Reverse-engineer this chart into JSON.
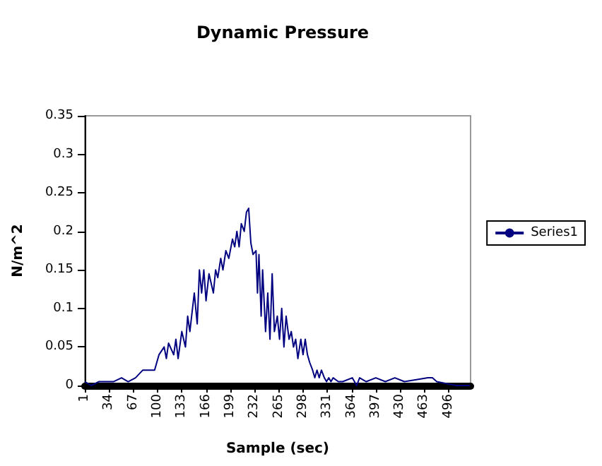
{
  "chart_data": {
    "type": "line",
    "title": "Dynamic Pressure",
    "xlabel": "Sample (sec)",
    "ylabel": "N/m^2",
    "x": [
      1,
      10,
      20,
      30,
      40,
      51,
      60,
      70,
      80,
      96,
      99,
      102,
      109,
      112,
      115,
      122,
      125,
      128,
      133,
      138,
      141,
      144,
      150,
      154,
      157,
      160,
      163,
      166,
      170,
      176,
      179,
      182,
      186,
      189,
      193,
      197,
      202,
      205,
      208,
      211,
      214,
      218,
      221,
      224,
      227,
      230,
      234,
      236,
      238,
      241,
      243,
      247,
      250,
      253,
      256,
      259,
      263,
      266,
      269,
      272,
      275,
      279,
      282,
      285,
      288,
      291,
      295,
      298,
      301,
      304,
      307,
      311,
      314,
      317,
      320,
      323,
      327,
      330,
      333,
      336,
      339,
      346,
      352,
      365,
      371,
      375,
      384,
      397,
      410,
      423,
      436,
      468,
      474,
      480,
      506,
      525
    ],
    "series": [
      {
        "name": "Series1",
        "color": "#000080",
        "values": [
          0.005,
          0,
          0.005,
          0.005,
          0.005,
          0.01,
          0.005,
          0.01,
          0.02,
          0.02,
          0.03,
          0.04,
          0.05,
          0.035,
          0.055,
          0.04,
          0.06,
          0.035,
          0.07,
          0.05,
          0.09,
          0.07,
          0.12,
          0.08,
          0.15,
          0.12,
          0.15,
          0.11,
          0.145,
          0.12,
          0.15,
          0.14,
          0.165,
          0.15,
          0.175,
          0.165,
          0.19,
          0.18,
          0.2,
          0.18,
          0.21,
          0.2,
          0.225,
          0.23,
          0.185,
          0.17,
          0.175,
          0.12,
          0.17,
          0.09,
          0.15,
          0.07,
          0.12,
          0.06,
          0.145,
          0.07,
          0.09,
          0.06,
          0.1,
          0.05,
          0.09,
          0.06,
          0.07,
          0.05,
          0.06,
          0.035,
          0.06,
          0.04,
          0.06,
          0.04,
          0.03,
          0.02,
          0.01,
          0.02,
          0.01,
          0.02,
          0.01,
          0.005,
          0.01,
          0.005,
          0.01,
          0.005,
          0.005,
          0.01,
          0,
          0.01,
          0.005,
          0.01,
          0.005,
          0.01,
          0.005,
          0.01,
          0.01,
          0.005,
          0,
          0
        ]
      }
    ],
    "xlim": [
      1,
      526
    ],
    "xticks": [
      1,
      34,
      67,
      100,
      133,
      166,
      199,
      232,
      265,
      298,
      331,
      364,
      397,
      430,
      463,
      496
    ],
    "ylim": [
      0,
      0.35
    ],
    "yticks": [
      0,
      0.05,
      0.1,
      0.15,
      0.2,
      0.25,
      0.3,
      0.35
    ],
    "grid": false,
    "legend": "right",
    "marker": "none",
    "line_style": "solid"
  }
}
